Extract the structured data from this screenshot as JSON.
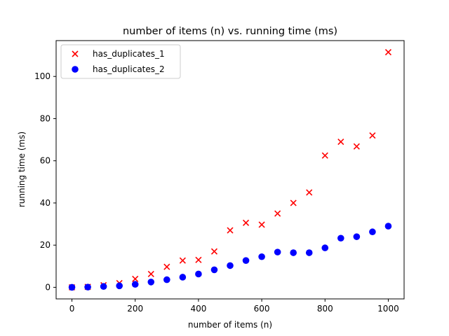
{
  "chart_data": {
    "type": "scatter",
    "title": "number of items (n) vs. running time (ms)",
    "xlabel": "number of items (n)",
    "ylabel": "running time (ms)",
    "xlim": [
      -50,
      1050
    ],
    "ylim": [
      -5.5,
      117
    ],
    "xticks": [
      0,
      200,
      400,
      600,
      800,
      1000
    ],
    "yticks": [
      0,
      20,
      40,
      60,
      80,
      100
    ],
    "grid": false,
    "legend_position": "top-left",
    "series": [
      {
        "name": "has_duplicates_1",
        "marker": "x",
        "color": "#ff0000",
        "x": [
          0,
          50,
          100,
          150,
          200,
          250,
          300,
          350,
          400,
          450,
          500,
          550,
          600,
          650,
          700,
          750,
          800,
          850,
          900,
          950,
          1000
        ],
        "y": [
          0,
          0.2,
          1.0,
          2.0,
          4.0,
          6.3,
          9.7,
          12.7,
          13.0,
          17.0,
          27.0,
          30.6,
          29.7,
          35.0,
          40.0,
          45.0,
          62.5,
          69.0,
          66.8,
          72.0,
          111.5
        ]
      },
      {
        "name": "has_duplicates_2",
        "marker": "o",
        "color": "#0000ff",
        "x": [
          0,
          50,
          100,
          150,
          200,
          250,
          300,
          350,
          400,
          450,
          500,
          550,
          600,
          650,
          700,
          750,
          800,
          850,
          900,
          950,
          1000
        ],
        "y": [
          0,
          0.1,
          0.4,
          0.7,
          1.4,
          2.5,
          3.6,
          4.8,
          6.3,
          8.3,
          10.3,
          12.7,
          14.5,
          16.7,
          16.4,
          16.4,
          18.7,
          23.3,
          24.0,
          26.3,
          29.0
        ]
      }
    ]
  }
}
